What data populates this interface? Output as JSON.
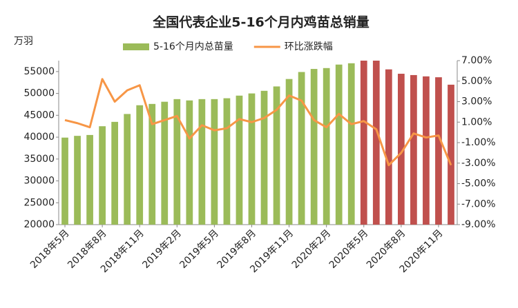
{
  "chart_data": {
    "type": "bar_line",
    "title": "全国代表企业5-16个月内鸡苗总销量",
    "y_unit": "万羽",
    "categories": [
      "2018年5月",
      null,
      null,
      "2018年8月",
      null,
      null,
      "2018年11月",
      null,
      null,
      "2019年2月",
      null,
      null,
      "2019年5月",
      null,
      null,
      "2019年8月",
      null,
      null,
      "2019年11月",
      null,
      null,
      "2020年2月",
      null,
      null,
      "2020年5月",
      null,
      null,
      "2020年8月",
      null,
      null,
      "2020年11月",
      null
    ],
    "series": [
      {
        "name": "5-16个月内总苗量",
        "type": "bar",
        "color": "#9bbb59",
        "bar_colors": [
          "#9bbb59",
          "#9bbb59",
          "#9bbb59",
          "#9bbb59",
          "#9bbb59",
          "#9bbb59",
          "#9bbb59",
          "#9bbb59",
          "#9bbb59",
          "#9bbb59",
          "#9bbb59",
          "#9bbb59",
          "#9bbb59",
          "#9bbb59",
          "#9bbb59",
          "#9bbb59",
          "#9bbb59",
          "#9bbb59",
          "#9bbb59",
          "#9bbb59",
          "#9bbb59",
          "#9bbb59",
          "#9bbb59",
          "#9bbb59",
          "#c0504d",
          "#c0504d",
          "#c0504d",
          "#c0504d",
          "#c0504d",
          "#c0504d",
          "#c0504d",
          "#c0504d"
        ],
        "values": [
          39900,
          40300,
          40500,
          42500,
          43500,
          45300,
          47300,
          47600,
          48100,
          48700,
          48400,
          48700,
          48700,
          48900,
          49500,
          50000,
          50600,
          51600,
          53300,
          54900,
          55600,
          55800,
          56600,
          56900,
          57500,
          57500,
          55500,
          54500,
          54200,
          53900,
          53700,
          52000
        ]
      },
      {
        "name": "环比涨跌幅",
        "type": "line",
        "axis": "y2",
        "color": "#f79646",
        "values": [
          1.2,
          0.9,
          0.5,
          5.2,
          3.0,
          4.1,
          4.6,
          0.8,
          1.2,
          1.6,
          -0.6,
          0.7,
          0.2,
          0.4,
          1.3,
          1.0,
          1.4,
          2.2,
          3.6,
          3.1,
          1.2,
          0.5,
          1.8,
          0.8,
          1.1,
          0.3,
          -3.2,
          -2.0,
          -0.1,
          -0.5,
          -0.3,
          -3.2
        ]
      }
    ],
    "ylim": [
      20000,
      57500
    ],
    "yticks": [
      20000,
      25000,
      30000,
      35000,
      40000,
      45000,
      50000,
      55000
    ],
    "y2lim": [
      -9,
      7
    ],
    "y2ticks": [
      {
        "value": -9,
        "label": "-9.00%"
      },
      {
        "value": -7,
        "label": "-7.00%"
      },
      {
        "value": -5,
        "label": "-5.00%"
      },
      {
        "value": -3,
        "label": "-3.00%"
      },
      {
        "value": -1,
        "label": "-1.00%"
      },
      {
        "value": 1,
        "label": "1.00%"
      },
      {
        "value": 3,
        "label": "3.00%"
      },
      {
        "value": 5,
        "label": "5.00%"
      },
      {
        "value": 7,
        "label": "7.00%"
      }
    ],
    "grid": false,
    "legend": "top"
  }
}
